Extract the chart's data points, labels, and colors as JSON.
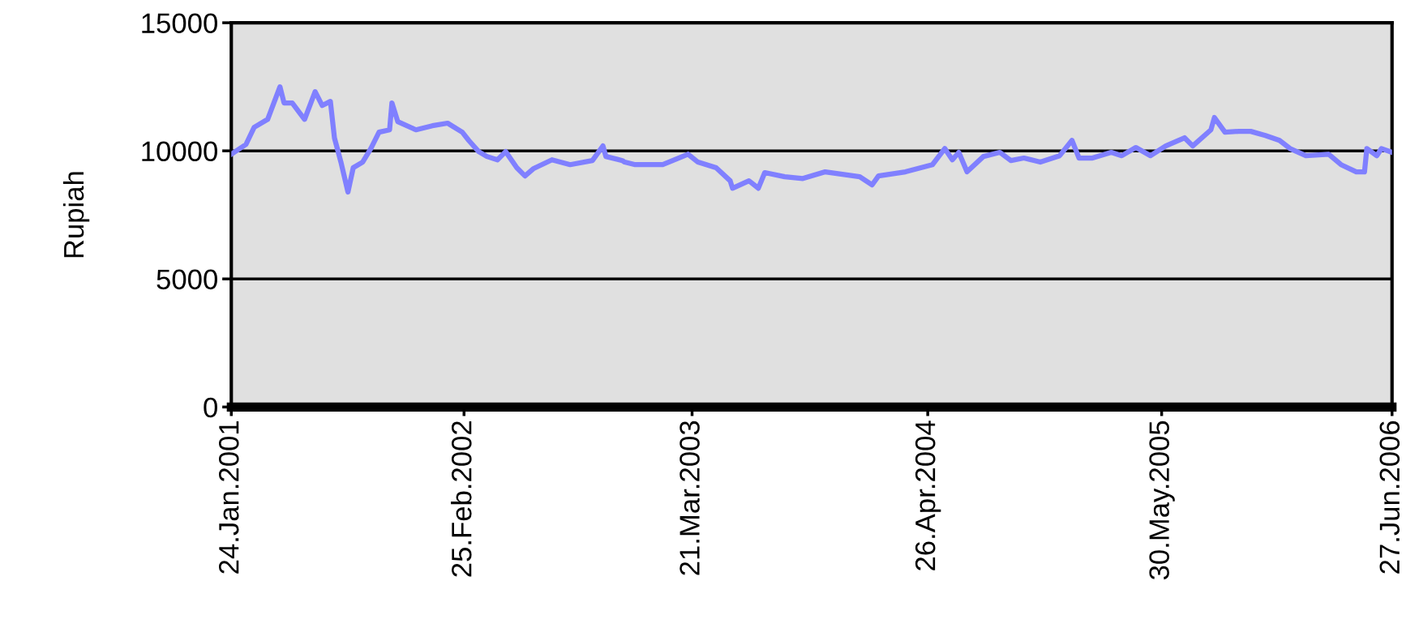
{
  "chart_data": {
    "type": "line",
    "ylabel": "Rupiah",
    "x": [
      "2001-01-24",
      "2001-02-18",
      "2001-03-04",
      "2001-03-27",
      "2001-04-17",
      "2001-04-24",
      "2001-05-08",
      "2001-05-29",
      "2001-06-16",
      "2001-06-28",
      "2001-07-12",
      "2001-07-19",
      "2001-07-30",
      "2001-08-11",
      "2001-08-20",
      "2001-09-05",
      "2001-09-19",
      "2001-10-03",
      "2001-10-21",
      "2001-10-25",
      "2001-11-04",
      "2001-12-05",
      "2002-01-02",
      "2002-01-28",
      "2002-02-22",
      "2002-03-05",
      "2002-03-22",
      "2002-04-05",
      "2002-04-23",
      "2002-05-07",
      "2002-05-26",
      "2002-06-09",
      "2002-06-23",
      "2002-07-25",
      "2002-08-25",
      "2002-10-02",
      "2002-10-20",
      "2002-10-25",
      "2002-11-22",
      "2002-11-26",
      "2002-12-14",
      "2003-01-30",
      "2003-03-14",
      "2003-03-31",
      "2003-05-01",
      "2003-05-25",
      "2003-05-29",
      "2003-06-26",
      "2003-07-12",
      "2003-07-23",
      "2003-08-26",
      "2003-09-26",
      "2003-11-03",
      "2004-01-01",
      "2004-01-22",
      "2004-02-02",
      "2004-03-19",
      "2004-05-04",
      "2004-05-25",
      "2004-06-07",
      "2004-06-18",
      "2004-07-02",
      "2004-07-30",
      "2004-08-27",
      "2004-09-15",
      "2004-10-07",
      "2004-11-04",
      "2004-12-07",
      "2004-12-28",
      "2005-01-09",
      "2005-02-01",
      "2005-03-05",
      "2005-03-23",
      "2005-04-16",
      "2005-05-11",
      "2005-06-06",
      "2005-07-08",
      "2005-07-22",
      "2005-08-22",
      "2005-08-28",
      "2005-09-15",
      "2005-10-08",
      "2005-10-29",
      "2005-11-23",
      "2005-12-17",
      "2006-01-04",
      "2006-01-31",
      "2006-03-11",
      "2006-04-01",
      "2006-04-27",
      "2006-05-11",
      "2006-05-15",
      "2006-06-01",
      "2006-06-09",
      "2006-06-27"
    ],
    "series": [
      {
        "color": "#8080ff",
        "values": [
          9870,
          10250,
          10920,
          11230,
          12500,
          11870,
          11870,
          11230,
          12310,
          11770,
          11930,
          10500,
          9560,
          8390,
          9340,
          9560,
          10090,
          10730,
          10820,
          11870,
          11140,
          10820,
          10980,
          11080,
          10730,
          10410,
          9970,
          9780,
          9650,
          9970,
          9340,
          9020,
          9300,
          9650,
          9460,
          9620,
          10190,
          9780,
          9620,
          9560,
          9460,
          9460,
          9870,
          9560,
          9340,
          8830,
          8540,
          8830,
          8540,
          9150,
          8990,
          8920,
          9180,
          8990,
          8670,
          9020,
          9180,
          9460,
          10090,
          9650,
          9940,
          9180,
          9780,
          9940,
          9620,
          9720,
          9560,
          9810,
          10410,
          9720,
          9720,
          9940,
          9810,
          10130,
          9810,
          10190,
          10510,
          10190,
          10820,
          11300,
          10730,
          10760,
          10760,
          10600,
          10410,
          10090,
          9810,
          9870,
          9460,
          9180,
          9180,
          10090,
          9810,
          10090,
          9940
        ]
      }
    ],
    "xlim": [
      "2001-01-24",
      "2006-06-27"
    ],
    "xticks": [
      {
        "value": "2001-01-24",
        "label": "24.Jan.2001"
      },
      {
        "value": "2002-02-25",
        "label": "25.Feb.2002"
      },
      {
        "value": "2003-03-21",
        "label": "21.Mar.2003"
      },
      {
        "value": "2004-04-26",
        "label": "26.Apr.2004"
      },
      {
        "value": "2005-05-30",
        "label": "30.May.2005"
      },
      {
        "value": "2006-06-27",
        "label": "27.Jun.2006"
      }
    ],
    "ylim": [
      0,
      15000
    ],
    "yticks": [
      0,
      5000,
      10000,
      15000
    ],
    "grid": "y",
    "legend": false
  }
}
